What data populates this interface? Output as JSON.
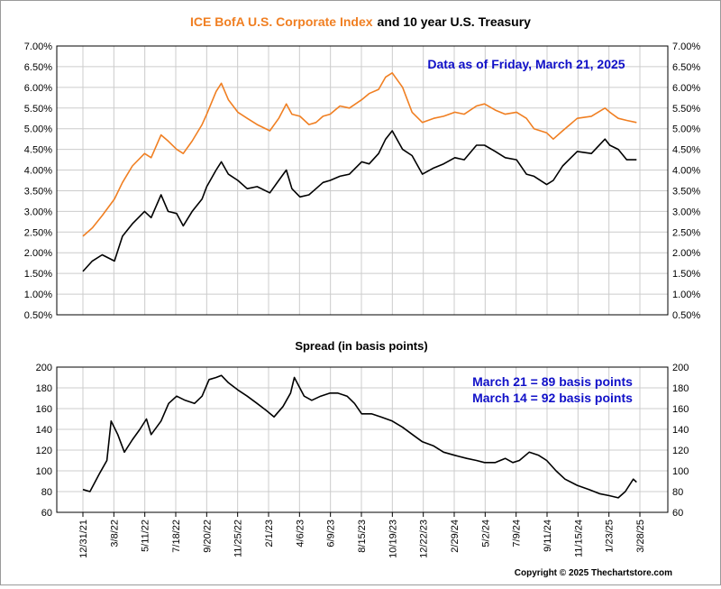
{
  "colors": {
    "orange": "#f07f22",
    "black": "#000000",
    "blue": "#1010c8",
    "grid": "#cccccc"
  },
  "header": {
    "title_part1": "ICE BofA U.S. Corporate Index",
    "title_part2": "and 10 year U.S. Treasury"
  },
  "top_annotation": "Data as of Friday, March 21, 2025",
  "bottom_title": "Spread (in basis points)",
  "bottom_annotation": [
    "March 21 = 89 basis points",
    "March 14 = 92 basis points"
  ],
  "copyright": "Copyright © 2025 Thechartstore.com",
  "chart_data": [
    {
      "type": "line",
      "title": "ICE BofA U.S. Corporate Index and 10 year U.S. Treasury",
      "y_tick_labels": [
        "0.50%",
        "1.00%",
        "1.50%",
        "2.00%",
        "2.50%",
        "3.00%",
        "3.50%",
        "4.00%",
        "4.50%",
        "5.00%",
        "5.50%",
        "6.00%",
        "6.50%",
        "7.00%"
      ],
      "ylim": [
        0.5,
        7.0
      ],
      "x_tick_labels": [
        "12/31/21",
        "3/8/22",
        "5/11/22",
        "7/18/22",
        "9/20/22",
        "11/25/22",
        "2/1/23",
        "4/6/23",
        "6/9/23",
        "8/15/23",
        "10/19/23",
        "12/22/23",
        "2/29/24",
        "5/2/24",
        "7/9/24",
        "9/11/24",
        "11/15/24",
        "1/23/25",
        "3/28/25"
      ],
      "grid": true,
      "series": [
        {
          "name": "ICE BofA U.S. Corporate Index",
          "color": "#f07f22",
          "x": [
            "2021-12-31",
            "2022-01-20",
            "2022-02-10",
            "2022-03-08",
            "2022-03-25",
            "2022-04-15",
            "2022-05-11",
            "2022-05-25",
            "2022-06-15",
            "2022-06-30",
            "2022-07-18",
            "2022-08-01",
            "2022-08-20",
            "2022-09-10",
            "2022-09-20",
            "2022-10-10",
            "2022-10-21",
            "2022-11-05",
            "2022-11-25",
            "2022-12-15",
            "2023-01-05",
            "2023-02-01",
            "2023-02-20",
            "2023-03-08",
            "2023-03-20",
            "2023-04-06",
            "2023-04-25",
            "2023-05-10",
            "2023-05-25",
            "2023-06-09",
            "2023-06-30",
            "2023-07-20",
            "2023-08-15",
            "2023-08-31",
            "2023-09-20",
            "2023-10-05",
            "2023-10-19",
            "2023-11-10",
            "2023-11-30",
            "2023-12-22",
            "2024-01-15",
            "2024-02-05",
            "2024-02-29",
            "2024-03-20",
            "2024-04-15",
            "2024-05-02",
            "2024-05-25",
            "2024-06-15",
            "2024-07-09",
            "2024-07-30",
            "2024-08-15",
            "2024-09-11",
            "2024-09-25",
            "2024-10-15",
            "2024-11-15",
            "2024-12-15",
            "2025-01-13",
            "2025-01-23",
            "2025-02-10",
            "2025-02-28",
            "2025-03-21"
          ],
          "values": [
            2.4,
            2.6,
            2.9,
            3.3,
            3.7,
            4.1,
            4.4,
            4.3,
            4.85,
            4.7,
            4.5,
            4.4,
            4.7,
            5.1,
            5.35,
            5.9,
            6.1,
            5.7,
            5.4,
            5.25,
            5.1,
            4.95,
            5.25,
            5.6,
            5.35,
            5.3,
            5.1,
            5.15,
            5.3,
            5.35,
            5.55,
            5.5,
            5.7,
            5.85,
            5.95,
            6.25,
            6.35,
            6.0,
            5.4,
            5.15,
            5.25,
            5.3,
            5.4,
            5.35,
            5.55,
            5.6,
            5.45,
            5.35,
            5.4,
            5.25,
            5.0,
            4.9,
            4.75,
            4.95,
            5.25,
            5.3,
            5.5,
            5.4,
            5.25,
            5.2,
            5.15
          ]
        },
        {
          "name": "10 year U.S. Treasury",
          "color": "#000000",
          "x": [
            "2021-12-31",
            "2022-01-20",
            "2022-02-10",
            "2022-03-08",
            "2022-03-25",
            "2022-04-15",
            "2022-05-11",
            "2022-05-25",
            "2022-06-15",
            "2022-06-30",
            "2022-07-18",
            "2022-08-01",
            "2022-08-20",
            "2022-09-10",
            "2022-09-20",
            "2022-10-10",
            "2022-10-21",
            "2022-11-05",
            "2022-11-25",
            "2022-12-15",
            "2023-01-05",
            "2023-02-01",
            "2023-02-20",
            "2023-03-08",
            "2023-03-20",
            "2023-04-06",
            "2023-04-25",
            "2023-05-10",
            "2023-05-25",
            "2023-06-09",
            "2023-06-30",
            "2023-07-20",
            "2023-08-15",
            "2023-08-31",
            "2023-09-20",
            "2023-10-05",
            "2023-10-19",
            "2023-11-10",
            "2023-11-30",
            "2023-12-22",
            "2024-01-15",
            "2024-02-05",
            "2024-02-29",
            "2024-03-20",
            "2024-04-15",
            "2024-05-02",
            "2024-05-25",
            "2024-06-15",
            "2024-07-09",
            "2024-07-30",
            "2024-08-15",
            "2024-09-11",
            "2024-09-25",
            "2024-10-15",
            "2024-11-15",
            "2024-12-15",
            "2025-01-13",
            "2025-01-23",
            "2025-02-10",
            "2025-02-28",
            "2025-03-21"
          ],
          "values": [
            1.55,
            1.8,
            1.95,
            1.8,
            2.4,
            2.7,
            3.0,
            2.85,
            3.4,
            3.0,
            2.95,
            2.65,
            3.0,
            3.3,
            3.6,
            4.0,
            4.2,
            3.9,
            3.75,
            3.55,
            3.6,
            3.45,
            3.75,
            4.0,
            3.55,
            3.35,
            3.4,
            3.55,
            3.7,
            3.75,
            3.85,
            3.9,
            4.2,
            4.15,
            4.4,
            4.75,
            4.95,
            4.5,
            4.35,
            3.9,
            4.05,
            4.15,
            4.3,
            4.25,
            4.6,
            4.6,
            4.45,
            4.3,
            4.25,
            3.9,
            3.85,
            3.65,
            3.75,
            4.1,
            4.45,
            4.4,
            4.75,
            4.6,
            4.5,
            4.25,
            4.25
          ]
        }
      ]
    },
    {
      "type": "line",
      "title": "Spread (in basis points)",
      "y_tick_labels": [
        "60",
        "80",
        "100",
        "120",
        "140",
        "160",
        "180",
        "200"
      ],
      "ylim": [
        60,
        200
      ],
      "x_tick_labels": [
        "12/31/21",
        "3/8/22",
        "5/11/22",
        "7/18/22",
        "9/20/22",
        "11/25/22",
        "2/1/23",
        "4/6/23",
        "6/9/23",
        "8/15/23",
        "10/19/23",
        "12/22/23",
        "2/29/24",
        "5/2/24",
        "7/9/24",
        "9/11/24",
        "11/15/24",
        "1/23/25",
        "3/28/25"
      ],
      "grid": true,
      "series": [
        {
          "name": "Spread",
          "color": "#000000",
          "x": [
            "2021-12-31",
            "2022-01-15",
            "2022-02-05",
            "2022-02-20",
            "2022-03-01",
            "2022-03-15",
            "2022-03-29",
            "2022-04-15",
            "2022-05-01",
            "2022-05-15",
            "2022-05-25",
            "2022-06-15",
            "2022-07-01",
            "2022-07-18",
            "2022-08-05",
            "2022-08-25",
            "2022-09-10",
            "2022-09-25",
            "2022-10-10",
            "2022-10-21",
            "2022-11-05",
            "2022-11-25",
            "2022-12-15",
            "2023-01-05",
            "2023-01-25",
            "2023-02-10",
            "2023-03-01",
            "2023-03-17",
            "2023-03-25",
            "2023-04-15",
            "2023-05-01",
            "2023-05-20",
            "2023-06-09",
            "2023-06-25",
            "2023-07-15",
            "2023-07-31",
            "2023-08-15",
            "2023-09-05",
            "2023-09-25",
            "2023-10-19",
            "2023-11-10",
            "2023-12-01",
            "2023-12-22",
            "2024-01-15",
            "2024-02-05",
            "2024-02-29",
            "2024-03-25",
            "2024-04-15",
            "2024-05-02",
            "2024-05-25",
            "2024-06-15",
            "2024-07-01",
            "2024-07-15",
            "2024-08-05",
            "2024-08-25",
            "2024-09-11",
            "2024-10-01",
            "2024-10-20",
            "2024-11-15",
            "2024-12-10",
            "2025-01-01",
            "2025-01-23",
            "2025-02-10",
            "2025-02-25",
            "2025-03-14",
            "2025-03-21"
          ],
          "values": [
            82,
            80,
            98,
            110,
            148,
            135,
            118,
            130,
            140,
            150,
            135,
            148,
            165,
            172,
            168,
            165,
            172,
            188,
            190,
            192,
            185,
            178,
            172,
            165,
            158,
            152,
            162,
            175,
            190,
            172,
            168,
            172,
            175,
            175,
            172,
            165,
            155,
            155,
            152,
            148,
            142,
            135,
            128,
            124,
            118,
            115,
            112,
            110,
            108,
            108,
            112,
            108,
            110,
            118,
            115,
            110,
            100,
            92,
            86,
            82,
            78,
            76,
            74,
            80,
            92,
            89
          ]
        }
      ]
    }
  ]
}
